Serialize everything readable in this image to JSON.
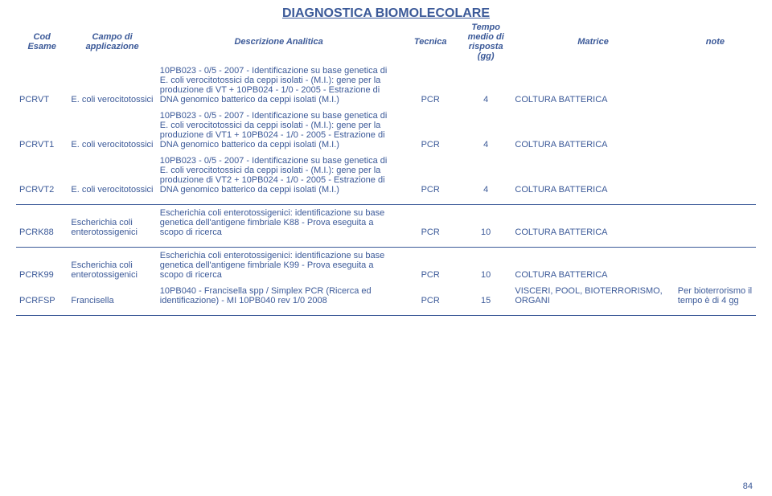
{
  "title": "DIAGNOSTICA BIOMOLECOLARE",
  "page_number": "84",
  "colors": {
    "text": "#3b5998",
    "line": "#3b5998",
    "background": "#ffffff"
  },
  "headers": {
    "cod": "Cod Esame",
    "campo": "Campo di applicazione",
    "desc": "Descrizione Analitica",
    "tecnica": "Tecnica",
    "tempo": "Tempo medio di risposta (gg)",
    "matrice": "Matrice",
    "note": "note"
  },
  "rows": [
    {
      "cod": "PCRVT",
      "campo": "E. coli verocitotossici",
      "desc": "10PB023 - 0/5 - 2007 - Identificazione su base genetica di E. coli verocitotossici da ceppi isolati - (M.I.): gene per la produzione di VT + 10PB024 - 1/0 - 2005 - Estrazione di DNA genomico batterico da ceppi isolati (M.I.)",
      "tecnica": "PCR",
      "tempo": "4",
      "matrice": "COLTURA BATTERICA",
      "note": ""
    },
    {
      "cod": "PCRVT1",
      "campo": "E. coli verocitotossici",
      "desc": "10PB023 - 0/5 - 2007 - Identificazione su base genetica di E. coli verocitotossici da ceppi isolati - (M.I.): gene per la produzione di VT1 + 10PB024 - 1/0 - 2005 - Estrazione di DNA genomico batterico da ceppi isolati (M.I.)",
      "tecnica": "PCR",
      "tempo": "4",
      "matrice": "COLTURA BATTERICA",
      "note": ""
    },
    {
      "cod": "PCRVT2",
      "campo": "E. coli verocitotossici",
      "desc": "10PB023 - 0/5 - 2007 - Identificazione su base genetica di E. coli verocitotossici da ceppi isolati - (M.I.): gene per la produzione di VT2 + 10PB024 - 1/0 - 2005 - Estrazione di DNA genomico batterico da ceppi isolati (M.I.)",
      "tecnica": "PCR",
      "tempo": "4",
      "matrice": "COLTURA BATTERICA",
      "note": ""
    },
    {
      "cod": "PCRK88",
      "campo": "Escherichia coli enterotossigenici",
      "desc": "Escherichia coli enterotossigenici: identificazione su base genetica dell'antigene fimbriale K88 - Prova eseguita a scopo di ricerca",
      "tecnica": "PCR",
      "tempo": "10",
      "matrice": "COLTURA BATTERICA",
      "note": ""
    },
    {
      "cod": "PCRK99",
      "campo": "Escherichia coli enterotossigenici",
      "desc": "Escherichia coli enterotossigenici: identificazione su base genetica dell'antigene fimbriale K99 - Prova eseguita a scopo di ricerca",
      "tecnica": "PCR",
      "tempo": "10",
      "matrice": "COLTURA BATTERICA",
      "note": ""
    },
    {
      "cod": "PCRFSP",
      "campo": "Francisella",
      "desc": "10PB040 - Francisella spp / Simplex PCR (Ricerca ed identificazione) - MI 10PB040 rev 1/0 2008",
      "tecnica": "PCR",
      "tempo": "15",
      "matrice": "VISCERI, POOL, BIOTERRORISMO, ORGANI",
      "note": "Per bioterrorismo il tempo è di 4 gg"
    }
  ]
}
